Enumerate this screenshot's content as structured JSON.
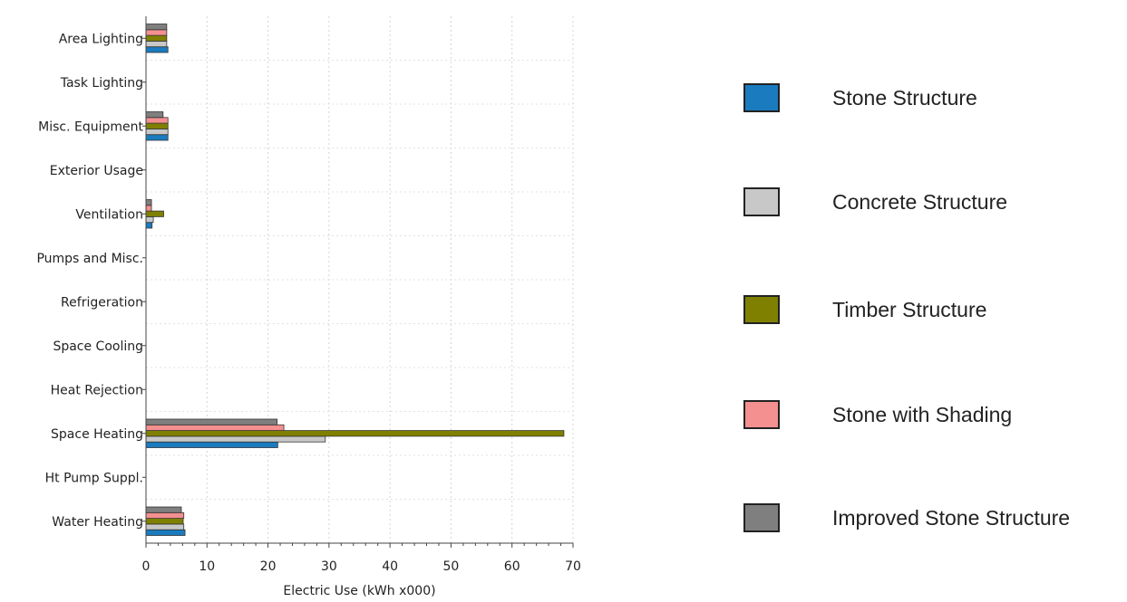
{
  "chart_data": {
    "type": "bar",
    "orientation": "horizontal",
    "categories": [
      "Area Lighting",
      "Task Lighting",
      "Misc. Equipment",
      "Exterior Usage",
      "Ventilation",
      "Pumps and Misc.",
      "Refrigeration",
      "Space Cooling",
      "Heat Rejection",
      "Space Heating",
      "Ht Pump Suppl.",
      "Water Heating"
    ],
    "series": [
      {
        "name": "Stone Structure",
        "color": "#1a7bbf",
        "values": [
          3.6,
          0,
          3.6,
          0,
          1.0,
          0,
          0,
          0,
          0,
          21.6,
          0,
          6.4
        ]
      },
      {
        "name": "Concrete Structure",
        "color": "#c8c8c8",
        "values": [
          3.4,
          0,
          3.6,
          0,
          1.2,
          0,
          0,
          0,
          0,
          29.4,
          0,
          6.2
        ]
      },
      {
        "name": "Timber Structure",
        "color": "#808000",
        "values": [
          3.4,
          0,
          3.6,
          0,
          2.9,
          0,
          0,
          0,
          0,
          68.5,
          0,
          6.1
        ]
      },
      {
        "name": "Stone with Shading",
        "color": "#f59090",
        "values": [
          3.4,
          0,
          3.6,
          0,
          0.9,
          0,
          0,
          0,
          0,
          22.6,
          0,
          6.2
        ]
      },
      {
        "name": "Improved Stone Structure",
        "color": "#7f7f7f",
        "values": [
          3.4,
          0,
          2.8,
          0,
          0.9,
          0,
          0,
          0,
          0,
          21.5,
          0,
          5.8
        ]
      }
    ],
    "xlabel": "Electric Use (kWh x000)",
    "ylabel": "",
    "xlim": [
      0,
      70
    ],
    "xticks": [
      0,
      10,
      20,
      30,
      40,
      50,
      60,
      70
    ],
    "grid": true,
    "legend_position": "right"
  }
}
